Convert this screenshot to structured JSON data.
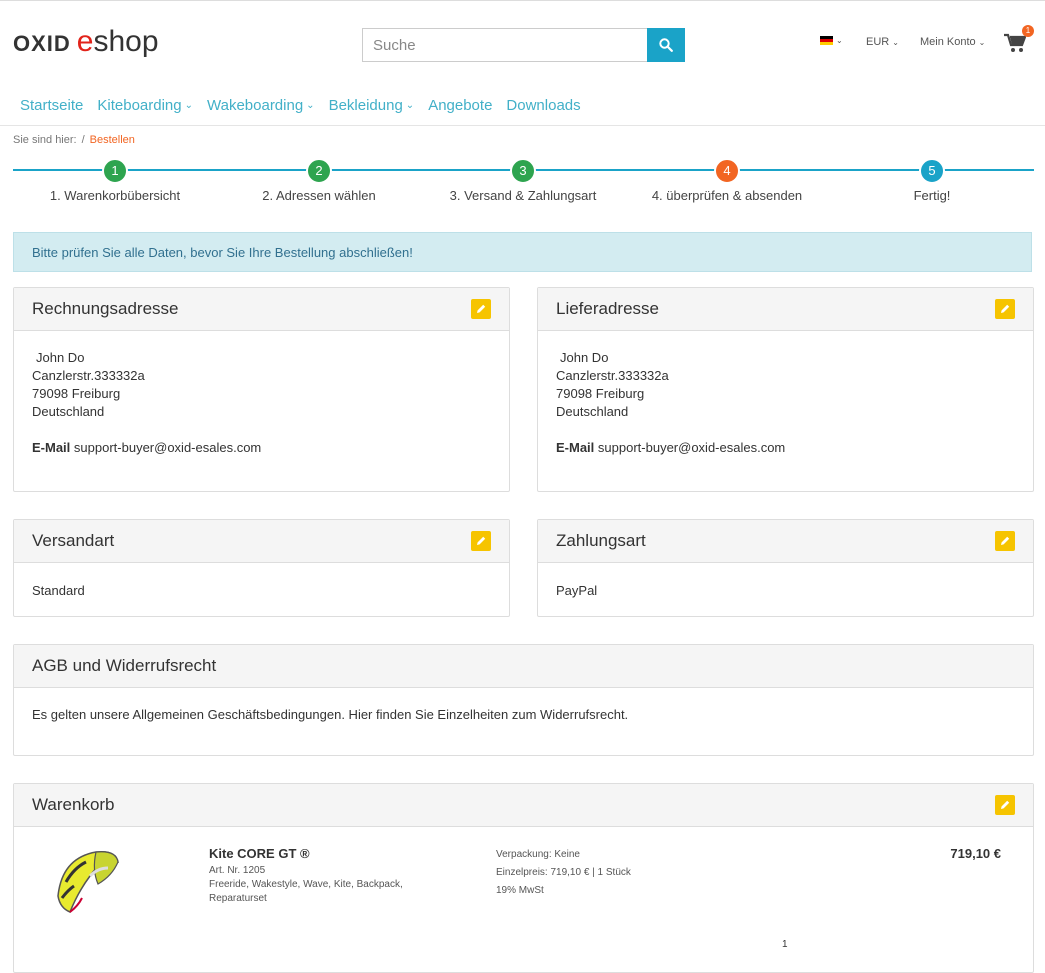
{
  "header": {
    "logo_text_a": "OXID",
    "logo_text_b": "e",
    "logo_text_c": "shop",
    "search_placeholder": "Suche",
    "currency": "EUR",
    "account": "Mein Konto",
    "cart_count": "1"
  },
  "nav": {
    "items": [
      "Startseite",
      "Kiteboarding",
      "Wakeboarding",
      "Bekleidung",
      "Angebote",
      "Downloads"
    ]
  },
  "breadcrumb": {
    "prefix": "Sie sind hier:",
    "sep": "/",
    "current": "Bestellen"
  },
  "steps": [
    {
      "num": "1",
      "label": "1. Warenkorbübersicht",
      "color": "#2ea44f"
    },
    {
      "num": "2",
      "label": "2. Adressen wählen",
      "color": "#2ea44f"
    },
    {
      "num": "3",
      "label": "3. Versand & Zahlungsart",
      "color": "#2ea44f"
    },
    {
      "num": "4",
      "label": "4. überprüfen & absenden",
      "color": "#f26522"
    },
    {
      "num": "5",
      "label": "Fertig!",
      "color": "#1aa3c8"
    }
  ],
  "alert": "Bitte prüfen Sie alle Daten, bevor Sie Ihre Bestellung abschließen!",
  "billing": {
    "title": "Rechnungsadresse",
    "name": "John Do",
    "street": "Canzlerstr.333332a",
    "city": "79098 Freiburg",
    "country": "Deutschland",
    "email_label": "E-Mail",
    "email": "support-buyer@oxid-esales.com"
  },
  "shipping_address": {
    "title": "Lieferadresse",
    "name": "John Do",
    "street": "Canzlerstr.333332a",
    "city": "79098 Freiburg",
    "country": "Deutschland",
    "email_label": "E-Mail",
    "email": "support-buyer@oxid-esales.com"
  },
  "shipping_method": {
    "title": "Versandart",
    "value": "Standard"
  },
  "payment": {
    "title": "Zahlungsart",
    "value": "PayPal"
  },
  "terms": {
    "title": "AGB und Widerrufsrecht",
    "text": "Es gelten unsere Allgemeinen Geschäftsbedingungen.  Hier finden Sie Einzelheiten zum Widerrufsrecht."
  },
  "basket": {
    "title": "Warenkorb",
    "product": {
      "name": "Kite CORE GT ®",
      "art_nr": "Art. Nr. 1205",
      "tags": "Freeride, Wakestyle, Wave, Kite, Backpack, Reparaturset",
      "packaging": "Verpackung: Keine",
      "unit_price": "Einzelpreis: 719,10 € | 1 Stück",
      "vat": "19% MwSt",
      "price": "719,10 €",
      "qty": "1"
    }
  }
}
